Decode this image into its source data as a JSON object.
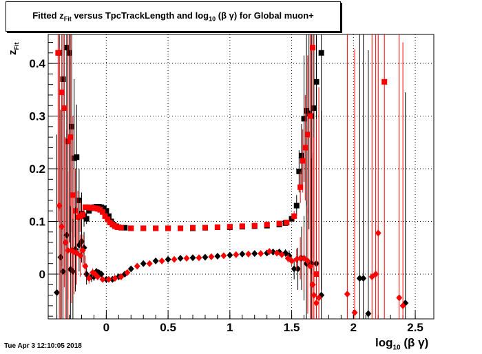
{
  "title": {
    "pre": "Fitted  z",
    "sub": "Fit",
    "mid": "  versus TpcTrackLength and log",
    "sub2": "10",
    "post": " (β γ) for Global muon+"
  },
  "timestamp": "Tue Apr  3 12:10:05 2018",
  "axes": {
    "xlabel_main": "log",
    "xlabel_sub": "10",
    "xlabel_post": " (β γ)",
    "ylabel_main": "z",
    "ylabel_sub": "Fit"
  },
  "colors": {
    "black_series": "#000000",
    "red_series": "#ff0000",
    "grid": "#000000"
  },
  "chart_data": {
    "type": "scatter",
    "xlim": [
      -0.47,
      2.65
    ],
    "ylim": [
      -0.085,
      0.455
    ],
    "xticks": [
      0,
      0.5,
      1,
      1.5,
      2,
      2.5
    ],
    "xtick_labels": [
      "0",
      "0.5",
      "1",
      "1.5",
      "2",
      "2.5"
    ],
    "yticks": [
      0,
      0.1,
      0.2,
      0.3,
      0.4
    ],
    "ytick_labels": [
      "0",
      "0.1",
      "0.2",
      "0.3",
      "0.4"
    ],
    "grid": true,
    "series": [
      {
        "color": "black",
        "marker": "square",
        "x": [
          -0.38,
          -0.35,
          -0.32,
          -0.3,
          -0.28,
          -0.26,
          -0.24,
          -0.22,
          -0.2,
          -0.18,
          -0.16,
          -0.14,
          -0.12,
          -0.1,
          -0.08,
          -0.06,
          -0.04,
          -0.02,
          0.0,
          0.02,
          0.04,
          0.06,
          0.08,
          0.1,
          0.15,
          0.2,
          0.3,
          0.4,
          0.5,
          0.6,
          0.7,
          0.8,
          0.9,
          1.0,
          1.1,
          1.2,
          1.3,
          1.4,
          1.45,
          1.5,
          1.54,
          1.56,
          1.58,
          1.6,
          1.62,
          1.64,
          1.66,
          1.68,
          1.7,
          1.74
        ],
        "y": [
          0.42,
          0.37,
          0.43,
          0.42,
          0.28,
          0.22,
          0.222,
          0.14,
          0.115,
          0.11,
          0.105,
          0.12,
          0.125,
          0.127,
          0.128,
          0.128,
          0.127,
          0.125,
          0.12,
          0.11,
          0.1,
          0.094,
          0.091,
          0.089,
          0.088,
          0.087,
          0.087,
          0.087,
          0.087,
          0.087,
          0.087,
          0.088,
          0.089,
          0.089,
          0.09,
          0.091,
          0.092,
          0.094,
          0.097,
          0.105,
          0.13,
          0.195,
          0.225,
          0.295,
          0.31,
          0.305,
          0.3,
          0.315,
          0.365,
          0.42
        ],
        "yerr": [
          0.3,
          0.32,
          0.35,
          0.36,
          0.2,
          0.15,
          0.1,
          0.06,
          0.04,
          0.02,
          0.01,
          0.005,
          0.004,
          0.003,
          0.003,
          0.002,
          0.002,
          0.002,
          0.002,
          0.002,
          0.002,
          0.002,
          0.002,
          0.002,
          0.001,
          0.001,
          0.001,
          0.001,
          0.001,
          0.001,
          0.001,
          0.001,
          0.001,
          0.001,
          0.001,
          0.001,
          0.001,
          0.002,
          0.003,
          0.005,
          0.02,
          0.04,
          0.06,
          0.12,
          0.18,
          0.22,
          0.3,
          0.35,
          0.4,
          0.45
        ]
      },
      {
        "color": "red",
        "marker": "square",
        "x": [
          -0.39,
          -0.36,
          -0.34,
          -0.31,
          -0.29,
          -0.27,
          -0.25,
          -0.23,
          -0.21,
          -0.19,
          -0.17,
          -0.15,
          -0.13,
          -0.11,
          -0.09,
          -0.07,
          -0.05,
          -0.03,
          -0.01,
          0.01,
          0.03,
          0.05,
          0.07,
          0.09,
          0.12,
          0.2,
          0.3,
          0.4,
          0.5,
          0.6,
          0.7,
          0.8,
          0.9,
          1.0,
          1.1,
          1.2,
          1.3,
          1.4,
          1.46,
          1.52,
          1.57,
          1.59,
          1.61,
          1.63,
          1.65,
          1.67,
          1.7,
          2.25
        ],
        "y": [
          0.42,
          0.345,
          0.315,
          0.252,
          0.26,
          0.15,
          0.12,
          0.108,
          0.11,
          0.113,
          0.127,
          0.127,
          0.126,
          0.126,
          0.125,
          0.124,
          0.122,
          0.118,
          0.11,
          0.104,
          0.098,
          0.094,
          0.091,
          0.089,
          0.088,
          0.087,
          0.087,
          0.087,
          0.087,
          0.087,
          0.088,
          0.088,
          0.089,
          0.09,
          0.091,
          0.092,
          0.094,
          0.096,
          0.098,
          0.11,
          0.165,
          0.215,
          0.24,
          0.265,
          0.3,
          0.43,
          0.0,
          0.365
        ],
        "yerr": [
          0.32,
          0.33,
          0.34,
          0.3,
          0.25,
          0.15,
          0.08,
          0.05,
          0.03,
          0.01,
          0.005,
          0.004,
          0.003,
          0.003,
          0.002,
          0.002,
          0.002,
          0.002,
          0.002,
          0.002,
          0.002,
          0.002,
          0.002,
          0.002,
          0.001,
          0.001,
          0.001,
          0.001,
          0.001,
          0.001,
          0.001,
          0.001,
          0.001,
          0.001,
          0.001,
          0.001,
          0.001,
          0.002,
          0.003,
          0.01,
          0.03,
          0.06,
          0.1,
          0.15,
          0.2,
          0.4,
          0.3,
          0.5
        ]
      },
      {
        "color": "black",
        "marker": "diamond",
        "x": [
          -0.4,
          -0.37,
          -0.35,
          -0.32,
          -0.29,
          -0.27,
          -0.25,
          -0.22,
          -0.2,
          -0.18,
          -0.16,
          -0.12,
          -0.1,
          -0.08,
          -0.06,
          -0.04,
          0.0,
          0.05,
          0.1,
          0.15,
          0.2,
          0.3,
          0.4,
          0.5,
          0.6,
          0.7,
          0.8,
          0.9,
          1.0,
          1.1,
          1.2,
          1.3,
          1.35,
          1.4,
          1.45,
          1.48,
          1.52,
          1.55,
          1.58,
          1.6,
          1.62,
          1.66,
          1.7,
          1.74,
          2.05,
          2.08,
          2.12,
          2.42
        ],
        "y": [
          -0.035,
          0.032,
          0.005,
          0.074,
          0.009,
          0.005,
          0.047,
          0.055,
          0.062,
          0.05,
          0.0,
          -0.005,
          -0.005,
          0.005,
          0.003,
          0.0,
          -0.01,
          -0.01,
          -0.005,
          0.0,
          0.01,
          0.02,
          0.025,
          0.028,
          0.03,
          0.031,
          0.032,
          0.034,
          0.036,
          0.038,
          0.039,
          0.04,
          0.042,
          0.042,
          0.04,
          0.035,
          0.01,
          0.01,
          0.03,
          0.03,
          0.02,
          0.02,
          0.02,
          -0.04,
          -0.008,
          -0.008,
          -0.075,
          -0.055
        ],
        "yerr": [
          0.3,
          0.28,
          0.25,
          0.2,
          0.12,
          0.1,
          0.08,
          0.05,
          0.04,
          0.03,
          0.02,
          0.01,
          0.008,
          0.006,
          0.005,
          0.004,
          0.003,
          0.002,
          0.002,
          0.002,
          0.002,
          0.002,
          0.002,
          0.002,
          0.002,
          0.002,
          0.002,
          0.002,
          0.002,
          0.002,
          0.002,
          0.003,
          0.004,
          0.005,
          0.007,
          0.01,
          0.02,
          0.04,
          0.06,
          0.08,
          0.12,
          0.2,
          0.3,
          0.35,
          0.5,
          0.5,
          0.5,
          0.4
        ]
      },
      {
        "color": "red",
        "marker": "diamond",
        "x": [
          -0.38,
          -0.36,
          -0.33,
          -0.31,
          -0.28,
          -0.26,
          -0.24,
          -0.21,
          -0.19,
          -0.17,
          -0.14,
          -0.11,
          -0.09,
          -0.07,
          -0.03,
          0.02,
          0.07,
          0.12,
          0.17,
          0.25,
          0.35,
          0.45,
          0.55,
          0.65,
          0.75,
          0.85,
          0.95,
          1.05,
          1.15,
          1.25,
          1.32,
          1.38,
          1.42,
          1.47,
          1.5,
          1.54,
          1.57,
          1.6,
          1.63,
          1.65,
          1.67,
          1.68,
          1.7,
          1.72,
          1.95,
          2.01,
          2.15,
          2.18,
          2.2,
          2.37,
          2.4
        ],
        "y": [
          0.13,
          0.09,
          0.06,
          0.045,
          0.045,
          0.042,
          0.04,
          0.035,
          0.045,
          0.015,
          -0.008,
          0.003,
          0.0,
          -0.005,
          -0.01,
          -0.01,
          -0.008,
          -0.005,
          0.003,
          0.015,
          0.02,
          0.025,
          0.028,
          0.03,
          0.031,
          0.033,
          0.035,
          0.037,
          0.038,
          0.039,
          0.043,
          0.04,
          0.037,
          0.03,
          0.025,
          0.028,
          0.03,
          0.03,
          0.025,
          0.015,
          -0.02,
          -0.04,
          -0.055,
          -0.045,
          -0.038,
          -0.073,
          -0.005,
          0.0,
          0.078,
          -0.045,
          -0.06
        ],
        "yerr": [
          0.3,
          0.25,
          0.2,
          0.15,
          0.1,
          0.08,
          0.06,
          0.04,
          0.03,
          0.02,
          0.01,
          0.008,
          0.006,
          0.005,
          0.004,
          0.003,
          0.002,
          0.002,
          0.002,
          0.002,
          0.002,
          0.002,
          0.002,
          0.002,
          0.002,
          0.002,
          0.002,
          0.002,
          0.002,
          0.002,
          0.003,
          0.004,
          0.005,
          0.008,
          0.01,
          0.02,
          0.04,
          0.06,
          0.1,
          0.15,
          0.25,
          0.3,
          0.35,
          0.4,
          0.5,
          0.5,
          0.5,
          0.5,
          0.5,
          0.5,
          0.5
        ]
      }
    ]
  }
}
